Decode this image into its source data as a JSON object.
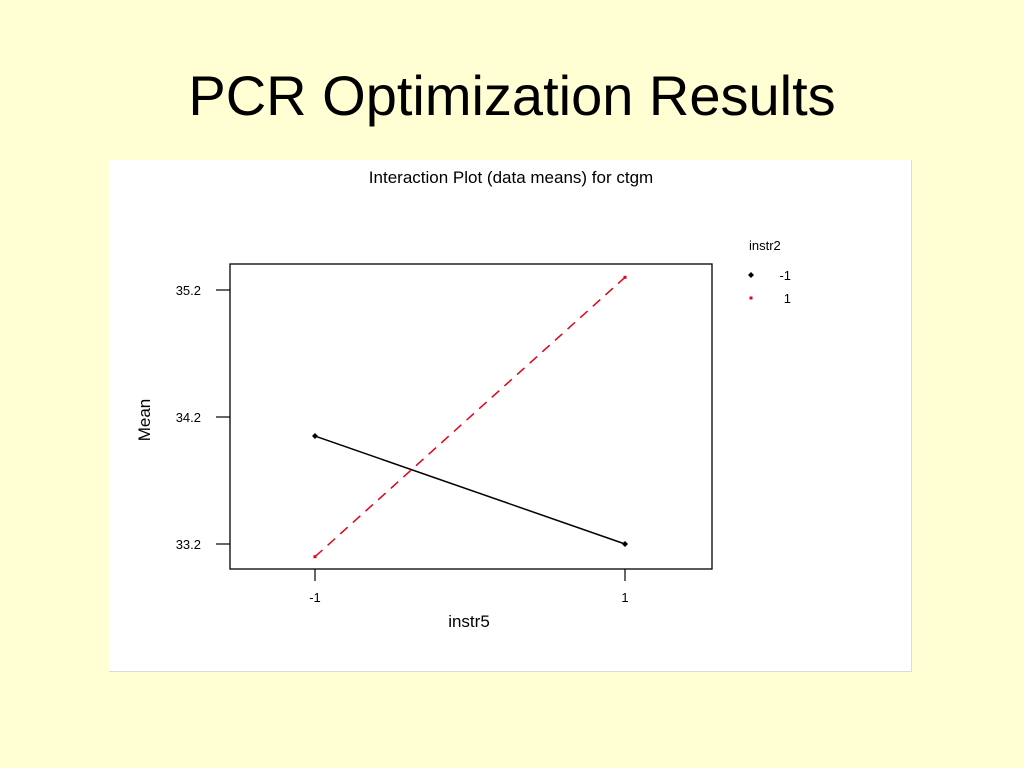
{
  "slide": {
    "title": "PCR Optimization Results",
    "background": "#ffffd3"
  },
  "chart_data": {
    "type": "line",
    "title": "Interaction Plot (data means) for ctgm",
    "xlabel": "instr5",
    "ylabel": "Mean",
    "categories": [
      "-1",
      "1"
    ],
    "yticks": [
      "33.2",
      "34.2",
      "35.2"
    ],
    "ylim": [
      33.0,
      35.3
    ],
    "legend": {
      "title": "instr2",
      "placement": "right"
    },
    "series": [
      {
        "name": "-1",
        "values": [
          34.05,
          33.2
        ],
        "color": "#000000",
        "dash": "solid",
        "marker": "diamond"
      },
      {
        "name": "1",
        "values": [
          33.1,
          35.3
        ],
        "color": "#e3001b",
        "dash": "dashed",
        "marker": "square"
      }
    ],
    "grid": false
  }
}
